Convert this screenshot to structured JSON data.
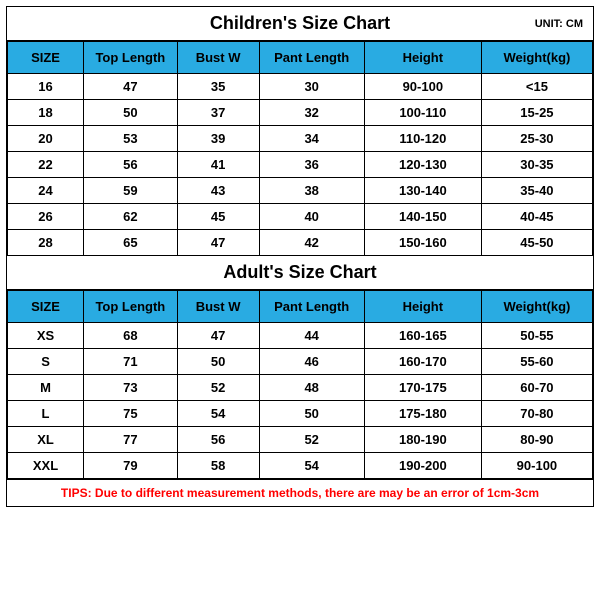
{
  "children": {
    "title": "Children's Size Chart",
    "unit": "UNIT: CM",
    "columns": [
      "SIZE",
      "Top Length",
      "Bust W",
      "Pant Length",
      "Height",
      "Weight(kg)"
    ],
    "rows": [
      [
        "16",
        "47",
        "35",
        "30",
        "90-100",
        "<15"
      ],
      [
        "18",
        "50",
        "37",
        "32",
        "100-110",
        "15-25"
      ],
      [
        "20",
        "53",
        "39",
        "34",
        "110-120",
        "25-30"
      ],
      [
        "22",
        "56",
        "41",
        "36",
        "120-130",
        "30-35"
      ],
      [
        "24",
        "59",
        "43",
        "38",
        "130-140",
        "35-40"
      ],
      [
        "26",
        "62",
        "45",
        "40",
        "140-150",
        "40-45"
      ],
      [
        "28",
        "65",
        "47",
        "42",
        "150-160",
        "45-50"
      ]
    ]
  },
  "adult": {
    "title": "Adult's Size Chart",
    "columns": [
      "SIZE",
      "Top Length",
      "Bust W",
      "Pant Length",
      "Height",
      "Weight(kg)"
    ],
    "rows": [
      [
        "XS",
        "68",
        "47",
        "44",
        "160-165",
        "50-55"
      ],
      [
        "S",
        "71",
        "50",
        "46",
        "160-170",
        "55-60"
      ],
      [
        "M",
        "73",
        "52",
        "48",
        "170-175",
        "60-70"
      ],
      [
        "L",
        "75",
        "54",
        "50",
        "175-180",
        "70-80"
      ],
      [
        "XL",
        "77",
        "56",
        "52",
        "180-190",
        "80-90"
      ],
      [
        "XXL",
        "79",
        "58",
        "54",
        "190-200",
        "90-100"
      ]
    ]
  },
  "tips": "TIPS: Due to different measurement methods, there are may be an error of 1cm-3cm",
  "style": {
    "header_bg": "#29abe2",
    "tips_color": "#ff0000",
    "border_color": "#000000",
    "bg_color": "#ffffff"
  }
}
